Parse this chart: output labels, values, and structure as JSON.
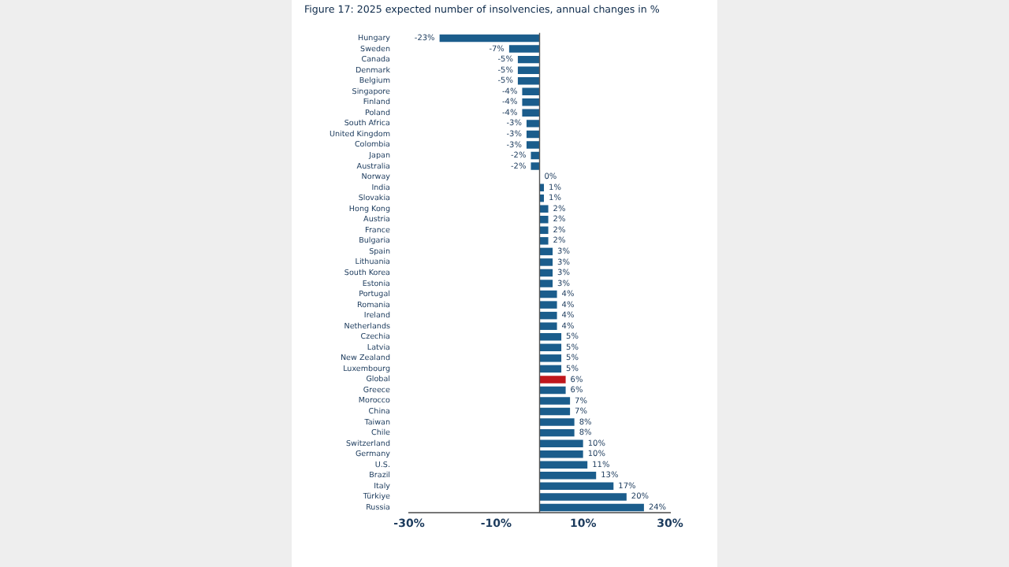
{
  "chart_data": {
    "type": "bar",
    "orientation": "horizontal",
    "title": "Figure 17: 2025 expected number of insolvencies, annual changes in %",
    "categories": [
      "Hungary",
      "Sweden",
      "Canada",
      "Denmark",
      "Belgium",
      "Singapore",
      "Finland",
      "Poland",
      "South Africa",
      "United Kingdom",
      "Colombia",
      "Japan",
      "Australia",
      "Norway",
      "India",
      "Slovakia",
      "Hong Kong",
      "Austria",
      "France",
      "Bulgaria",
      "Spain",
      "Lithuania",
      "South Korea",
      "Estonia",
      "Portugal",
      "Romania",
      "Ireland",
      "Netherlands",
      "Czechia",
      "Latvia",
      "New Zealand",
      "Luxembourg",
      "Global",
      "Greece",
      "Morocco",
      "China",
      "Taiwan",
      "Chile",
      "Switzerland",
      "Germany",
      "U.S.",
      "Brazil",
      "Italy",
      "Türkiye",
      "Russia"
    ],
    "values": [
      -23,
      -7,
      -5,
      -5,
      -5,
      -4,
      -4,
      -4,
      -3,
      -3,
      -3,
      -2,
      -2,
      0,
      1,
      1,
      2,
      2,
      2,
      2,
      3,
      3,
      3,
      3,
      4,
      4,
      4,
      4,
      5,
      5,
      5,
      5,
      6,
      6,
      7,
      7,
      8,
      8,
      10,
      10,
      11,
      13,
      17,
      20,
      24
    ],
    "value_labels": [
      "-23%",
      "-7%",
      "-5%",
      "-5%",
      "-5%",
      "-4%",
      "-4%",
      "-4%",
      "-3%",
      "-3%",
      "-3%",
      "-2%",
      "-2%",
      "0%",
      "1%",
      "1%",
      "2%",
      "2%",
      "2%",
      "2%",
      "3%",
      "3%",
      "3%",
      "3%",
      "4%",
      "4%",
      "4%",
      "4%",
      "5%",
      "5%",
      "5%",
      "5%",
      "6%",
      "6%",
      "7%",
      "7%",
      "8%",
      "8%",
      "10%",
      "10%",
      "11%",
      "13%",
      "17%",
      "20%",
      "24%"
    ],
    "colors": [
      "#1b5d8c",
      "#1b5d8c",
      "#1b5d8c",
      "#1b5d8c",
      "#1b5d8c",
      "#1b5d8c",
      "#1b5d8c",
      "#1b5d8c",
      "#1b5d8c",
      "#1b5d8c",
      "#1b5d8c",
      "#1b5d8c",
      "#1b5d8c",
      "#1b5d8c",
      "#1b5d8c",
      "#1b5d8c",
      "#1b5d8c",
      "#1b5d8c",
      "#1b5d8c",
      "#1b5d8c",
      "#1b5d8c",
      "#1b5d8c",
      "#1b5d8c",
      "#1b5d8c",
      "#1b5d8c",
      "#1b5d8c",
      "#1b5d8c",
      "#1b5d8c",
      "#1b5d8c",
      "#1b5d8c",
      "#1b5d8c",
      "#1b5d8c",
      "#c0171c",
      "#1b5d8c",
      "#1b5d8c",
      "#1b5d8c",
      "#1b5d8c",
      "#1b5d8c",
      "#1b5d8c",
      "#1b5d8c",
      "#1b5d8c",
      "#1b5d8c",
      "#1b5d8c",
      "#1b5d8c",
      "#1b5d8c"
    ],
    "xlim": [
      -30,
      30
    ],
    "xticks": [
      {
        "value": -30,
        "label": "-30%"
      },
      {
        "value": -10,
        "label": "-10%"
      },
      {
        "value": 10,
        "label": "10%"
      },
      {
        "value": 30,
        "label": "30%"
      }
    ],
    "grid": false,
    "legend": false
  }
}
